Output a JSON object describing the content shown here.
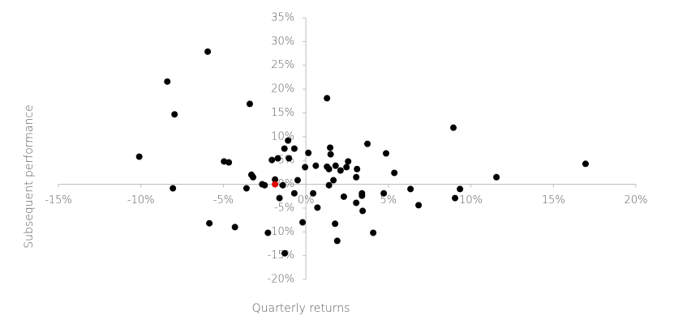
{
  "chart_data": {
    "type": "scatter",
    "x_label": "Quarterly returns",
    "y_label": "Subsequent performance",
    "xlim": [
      -15,
      20
    ],
    "ylim": [
      -20,
      35
    ],
    "xticks": [
      {
        "value": -15,
        "label": "-15%"
      },
      {
        "value": -10,
        "label": "-10%"
      },
      {
        "value": -5,
        "label": "-5%"
      },
      {
        "value": 0,
        "label": "0%"
      },
      {
        "value": 5,
        "label": "5%"
      },
      {
        "value": 10,
        "label": "10%"
      },
      {
        "value": 15,
        "label": "15%"
      },
      {
        "value": 20,
        "label": "20%"
      }
    ],
    "yticks": [
      {
        "value": -20,
        "label": "-20%"
      },
      {
        "value": -15,
        "label": "-15%"
      },
      {
        "value": -10,
        "label": "-10%"
      },
      {
        "value": -5,
        "label": "-5%"
      },
      {
        "value": 0,
        "label": "0%"
      },
      {
        "value": 5,
        "label": "5%"
      },
      {
        "value": 10,
        "label": "10%"
      },
      {
        "value": 15,
        "label": "15%"
      },
      {
        "value": 20,
        "label": "20%"
      },
      {
        "value": 25,
        "label": "25%"
      },
      {
        "value": 30,
        "label": "30%"
      },
      {
        "value": 35,
        "label": "35%"
      }
    ],
    "series": [
      {
        "color": "#000000",
        "x": [
          -5.95,
          -8.4,
          -7.96,
          -3.4,
          -10.1,
          -8.06,
          -4.96,
          -4.67,
          -3.3,
          -3.2,
          -3.6,
          -2.65,
          -2.5,
          -1.87,
          -1.4,
          -1.6,
          -2.06,
          -1.7,
          -1.3,
          -1.08,
          -1.03,
          -0.7,
          -0.05,
          0.15,
          0.6,
          -0.5,
          -0.7,
          0.44,
          0.7,
          -0.2,
          -2.3,
          -4.3,
          -5.85,
          -1.28,
          1.28,
          1.4,
          1.28,
          1.47,
          1.5,
          1.8,
          1.4,
          1.67,
          2.1,
          2.46,
          2.56,
          2.3,
          1.77,
          1.9,
          3.1,
          3.05,
          3.05,
          3.4,
          3.4,
          3.44,
          3.73,
          4.08,
          4.72,
          4.86,
          5.36,
          6.34,
          6.83,
          8.94,
          9.04,
          9.34,
          11.55,
          16.95
        ],
        "y": [
          27.9,
          21.6,
          14.7,
          16.9,
          5.8,
          -0.85,
          4.8,
          4.6,
          2.0,
          1.5,
          -0.85,
          0,
          -0.2,
          1.0,
          -0.2,
          -2.9,
          5.1,
          5.45,
          7.5,
          9.2,
          5.45,
          7.5,
          3.6,
          6.6,
          3.9,
          0.85,
          -1.9,
          -1.9,
          -4.9,
          -8.0,
          -10.2,
          -9.0,
          -8.2,
          -14.5,
          3.7,
          3.2,
          18.1,
          7.7,
          6.3,
          3.9,
          -0.2,
          0.85,
          2.9,
          3.6,
          4.8,
          -2.6,
          -8.3,
          -11.9,
          3.2,
          1.5,
          -3.9,
          -1.9,
          -2.4,
          -5.6,
          8.5,
          -10.2,
          -1.9,
          6.5,
          2.4,
          -1.0,
          -4.4,
          11.9,
          -2.9,
          -1.0,
          1.5,
          4.3
        ]
      },
      {
        "color": "#e00000",
        "x": [
          -1.87
        ],
        "y": [
          0
        ]
      }
    ]
  }
}
